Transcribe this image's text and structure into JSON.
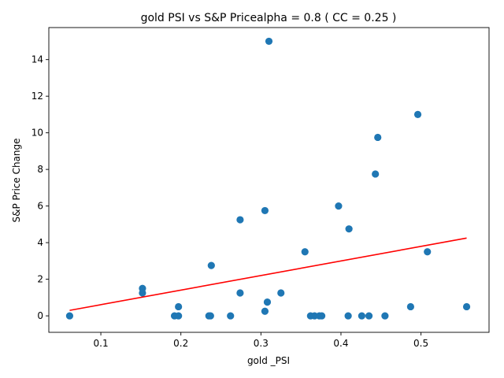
{
  "chart_data": {
    "type": "scatter",
    "title": "gold  PSI vs S&P Pricealpha = 0.8 ( CC = 0.25 )",
    "xlabel": "gold _PSI",
    "ylabel": "S&P Price Change",
    "xlim": [
      0.035,
      0.585
    ],
    "ylim": [
      -0.9,
      15.75
    ],
    "x_ticks": [
      0.1,
      0.2,
      0.3,
      0.4,
      0.5
    ],
    "x_tick_labels": [
      "0.1",
      "0.2",
      "0.3",
      "0.4",
      "0.5"
    ],
    "y_ticks": [
      0,
      2,
      4,
      6,
      8,
      10,
      12,
      14
    ],
    "y_tick_labels": [
      "0",
      "2",
      "4",
      "6",
      "8",
      "10",
      "12",
      "14"
    ],
    "grid": false,
    "series": [
      {
        "kind": "points",
        "color": "#1f77b4",
        "points": [
          [
            0.061,
            0.0
          ],
          [
            0.152,
            1.5
          ],
          [
            0.152,
            1.25
          ],
          [
            0.192,
            0.0
          ],
          [
            0.197,
            0.5
          ],
          [
            0.197,
            0.0
          ],
          [
            0.235,
            0.0
          ],
          [
            0.237,
            0.0
          ],
          [
            0.238,
            2.75
          ],
          [
            0.262,
            0.0
          ],
          [
            0.274,
            5.25
          ],
          [
            0.274,
            1.25
          ],
          [
            0.305,
            5.75
          ],
          [
            0.305,
            0.25
          ],
          [
            0.308,
            0.75
          ],
          [
            0.31,
            15.0
          ],
          [
            0.325,
            1.25
          ],
          [
            0.355,
            3.5
          ],
          [
            0.362,
            0.0
          ],
          [
            0.367,
            0.0
          ],
          [
            0.373,
            0.0
          ],
          [
            0.376,
            0.0
          ],
          [
            0.397,
            6.0
          ],
          [
            0.409,
            0.0
          ],
          [
            0.41,
            4.75
          ],
          [
            0.426,
            0.0
          ],
          [
            0.435,
            0.0
          ],
          [
            0.443,
            7.75
          ],
          [
            0.446,
            9.75
          ],
          [
            0.455,
            0.0
          ],
          [
            0.487,
            0.5
          ],
          [
            0.496,
            11.0
          ],
          [
            0.508,
            3.5
          ],
          [
            0.557,
            0.5
          ]
        ]
      },
      {
        "kind": "fit-line",
        "color": "#ff0000",
        "x": [
          0.061,
          0.557
        ],
        "y": [
          0.3,
          4.25
        ]
      }
    ]
  }
}
